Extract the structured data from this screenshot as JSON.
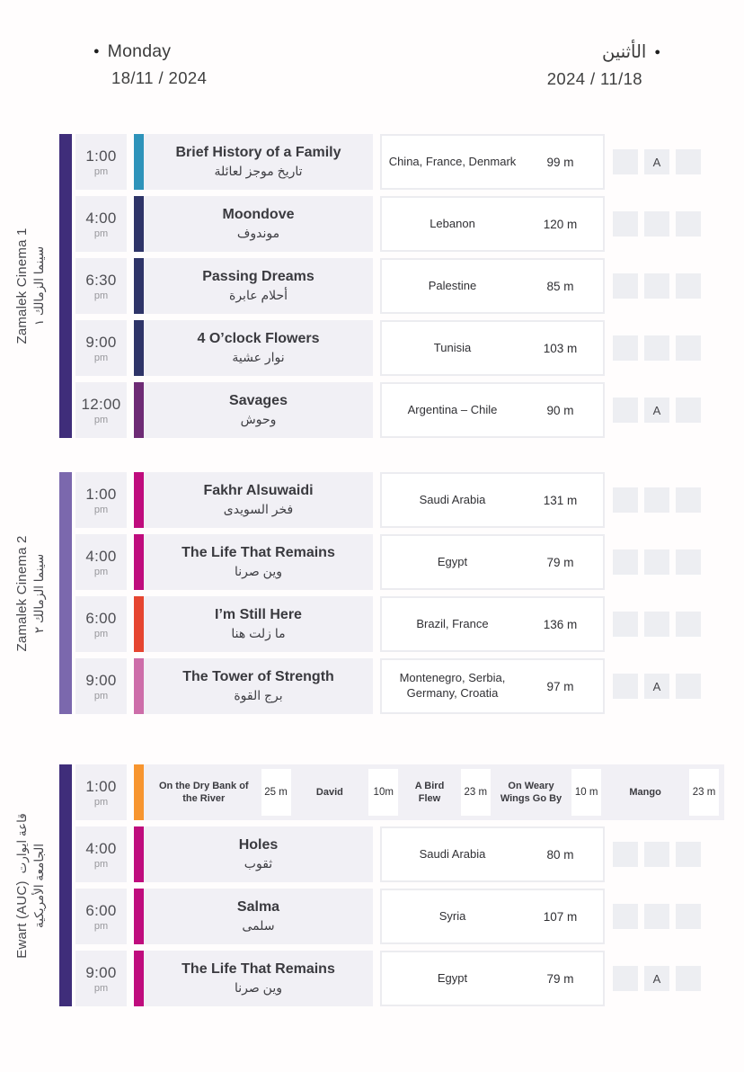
{
  "header": {
    "bullet": "●",
    "day_en": "Monday",
    "date_en": "18/11 / 2024",
    "day_ar": "الأثنين",
    "date_ar": "2024 / 11/18"
  },
  "venues": [
    {
      "label_en": "Zamalek Cinema 1",
      "label_ar_line": "سينما الزمالك ١",
      "bar_color": "#3f2d7a",
      "rows": [
        {
          "time": "1:00",
          "period": "pm",
          "accent": "#2e93ba",
          "title_en": "Brief History of a Family",
          "title_ar": "تاريخ موجز لعائلة",
          "country": "China, France, Denmark",
          "duration": "99 m",
          "badges": [
            "",
            "A",
            ""
          ]
        },
        {
          "time": "4:00",
          "period": "pm",
          "accent": "#2e3468",
          "title_en": "Moondove",
          "title_ar": "موندوف",
          "country": "Lebanon",
          "duration": "120 m",
          "badges": [
            "",
            "",
            ""
          ]
        },
        {
          "time": "6:30",
          "period": "pm",
          "accent": "#2e3468",
          "title_en": "Passing Dreams",
          "title_ar": "أحلام عابرة",
          "country": "Palestine",
          "duration": "85 m",
          "badges": [
            "",
            "",
            ""
          ]
        },
        {
          "time": "9:00",
          "period": "pm",
          "accent": "#2e3468",
          "title_en": "4 O’clock Flowers",
          "title_ar": "نوار عشية",
          "country": "Tunisia",
          "duration": "103 m",
          "badges": [
            "",
            "",
            ""
          ]
        },
        {
          "time": "12:00",
          "period": "pm",
          "accent": "#6e2b75",
          "title_en": "Savages",
          "title_ar": "وحوش",
          "country": "Argentina – Chile",
          "duration": "90 m",
          "badges": [
            "",
            "A",
            ""
          ]
        }
      ]
    },
    {
      "label_en": "Zamalek Cinema 2",
      "label_ar_line": "سينما الزمالك ٢",
      "bar_color": "#7b68ad",
      "rows": [
        {
          "time": "1:00",
          "period": "pm",
          "accent": "#bf0c7d",
          "title_en": "Fakhr Alsuwaidi",
          "title_ar": "فخر السويدى",
          "country": "Saudi Arabia",
          "duration": "131 m",
          "badges": [
            "",
            "",
            ""
          ]
        },
        {
          "time": "4:00",
          "period": "pm",
          "accent": "#bf0c7d",
          "title_en": "The Life That Remains",
          "title_ar": "وين صرنا",
          "country": "Egypt",
          "duration": "79 m",
          "badges": [
            "",
            "",
            ""
          ]
        },
        {
          "time": "6:00",
          "period": "pm",
          "accent": "#e64530",
          "title_en": "I’m Still Here",
          "title_ar": "ما زلت هنا",
          "country": "Brazil, France",
          "duration": "136 m",
          "badges": [
            "",
            "",
            ""
          ]
        },
        {
          "time": "9:00",
          "period": "pm",
          "accent": "#cd6da9",
          "title_en": "The Tower of Strength",
          "title_ar": "برج القوة",
          "country": "Montenegro, Serbia, Germany, Croatia",
          "duration": "97 m",
          "badges": [
            "",
            "A",
            ""
          ]
        }
      ]
    },
    {
      "label_en": "Ewart (AUC)",
      "label_ar_inline": "قاعة ايوارت",
      "label_ar_line": "الجامعة الأمريكية",
      "bar_color": "#3f2d7a",
      "rows": [
        {
          "time": "1:00",
          "period": "pm",
          "accent": "#f7952f",
          "shorts": [
            {
              "title": "On the Dry Bank of the River",
              "duration": "25 m"
            },
            {
              "title": "David",
              "duration": "10m"
            },
            {
              "title": "A Bird Flew",
              "duration": "23 m"
            },
            {
              "title": "On Weary Wings Go By",
              "duration": "10 m"
            },
            {
              "title": "Mango",
              "duration": "23 m"
            }
          ]
        },
        {
          "time": "4:00",
          "period": "pm",
          "accent": "#bf0c7d",
          "title_en": "Holes",
          "title_ar": "ثقوب",
          "country": "Saudi Arabia",
          "duration": "80 m",
          "badges": [
            "",
            "",
            ""
          ]
        },
        {
          "time": "6:00",
          "period": "pm",
          "accent": "#bf0c7d",
          "title_en": "Salma",
          "title_ar": "سلمى",
          "country": "Syria",
          "duration": "107 m",
          "badges": [
            "",
            "",
            ""
          ]
        },
        {
          "time": "9:00",
          "period": "pm",
          "accent": "#bf0c7d",
          "title_en": "The Life That Remains",
          "title_ar": "وين صرنا",
          "country": "Egypt",
          "duration": "79 m",
          "badges": [
            "",
            "A",
            ""
          ]
        }
      ]
    }
  ]
}
